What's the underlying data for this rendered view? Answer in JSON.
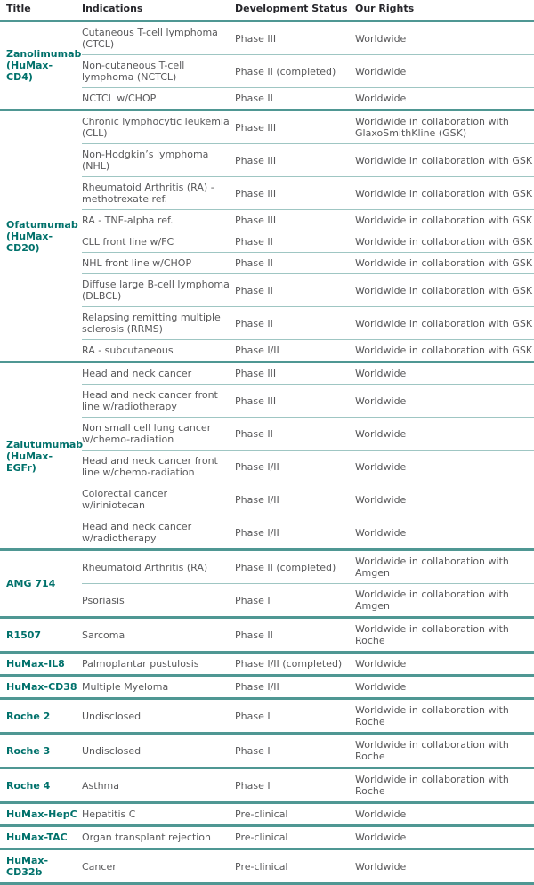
{
  "colors": {
    "accent": "#00716b",
    "border_thick": "#4f9793",
    "border_thin": "#9fc6c3",
    "header_text": "#26262b",
    "body_text": "#58585a",
    "background": "#ffffff"
  },
  "table": {
    "columns": [
      "Title",
      "Indications",
      "Development Status",
      "Our Rights"
    ],
    "groups": [
      {
        "title": "Zanolimumab (HuMax-CD4)",
        "rows": [
          {
            "indication": "Cutaneous T-cell lymphoma (CTCL)",
            "status": "Phase III",
            "rights": "Worldwide"
          },
          {
            "indication": "Non-cutaneous T-cell lymphoma (NCTCL)",
            "status": "Phase II (completed)",
            "rights": "Worldwide"
          },
          {
            "indication": "NCTCL w/CHOP",
            "status": "Phase II",
            "rights": "Worldwide"
          }
        ]
      },
      {
        "title": "Ofatumumab (HuMax-CD20)",
        "rows": [
          {
            "indication": "Chronic lymphocytic leukemia (CLL)",
            "status": "Phase III",
            "rights": "Worldwide in collaboration with GlaxoSmithKline (GSK)"
          },
          {
            "indication": "Non-Hodgkin’s lymphoma (NHL)",
            "status": "Phase III",
            "rights": "Worldwide in collaboration with GSK"
          },
          {
            "indication": "Rheumatoid Arthritis (RA) - methotrexate ref.",
            "status": "Phase III",
            "rights": "Worldwide in collaboration with GSK"
          },
          {
            "indication": "RA - TNF-alpha ref.",
            "status": "Phase III",
            "rights": "Worldwide in collaboration with GSK"
          },
          {
            "indication": "CLL front line w/FC",
            "status": "Phase II",
            "rights": "Worldwide in collaboration with GSK"
          },
          {
            "indication": "NHL front line w/CHOP",
            "status": "Phase II",
            "rights": "Worldwide in collaboration with GSK"
          },
          {
            "indication": "Diffuse large B-cell lymphoma (DLBCL)",
            "status": "Phase II",
            "rights": "Worldwide in collaboration with GSK"
          },
          {
            "indication": "Relapsing remitting multiple sclerosis (RRMS)",
            "status": "Phase II",
            "rights": "Worldwide in collaboration with GSK"
          },
          {
            "indication": "RA - subcutaneous",
            "status": "Phase I/II",
            "rights": "Worldwide in collaboration with GSK"
          }
        ]
      },
      {
        "title": "Zalutumumab (HuMax-EGFr)",
        "rows": [
          {
            "indication": "Head and neck cancer",
            "status": "Phase III",
            "rights": "Worldwide"
          },
          {
            "indication": "Head and neck cancer front line w/radiotherapy",
            "status": "Phase III",
            "rights": "Worldwide"
          },
          {
            "indication": "Non small cell lung cancer w/chemo-radiation",
            "status": "Phase II",
            "rights": "Worldwide"
          },
          {
            "indication": "Head and neck cancer front line w/chemo-radiation",
            "status": "Phase I/II",
            "rights": "Worldwide"
          },
          {
            "indication": "Colorectal cancer w/iriniotecan",
            "status": "Phase I/II",
            "rights": "Worldwide"
          },
          {
            "indication": "Head and neck cancer w/radiotherapy",
            "status": "Phase I/II",
            "rights": "Worldwide"
          }
        ]
      },
      {
        "title": "AMG 714",
        "rows": [
          {
            "indication": "Rheumatoid Arthritis (RA)",
            "status": "Phase II (completed)",
            "rights": "Worldwide in collaboration with Amgen"
          },
          {
            "indication": "Psoriasis",
            "status": "Phase I",
            "rights": "Worldwide in collaboration with Amgen"
          }
        ]
      },
      {
        "title": "R1507",
        "rows": [
          {
            "indication": "Sarcoma",
            "status": "Phase II",
            "rights": "Worldwide in collaboration with Roche"
          }
        ]
      },
      {
        "title": "HuMax-IL8",
        "rows": [
          {
            "indication": "Palmoplantar pustulosis",
            "status": "Phase I/II (completed)",
            "rights": "Worldwide"
          }
        ]
      },
      {
        "title": "HuMax-CD38",
        "rows": [
          {
            "indication": "Multiple Myeloma",
            "status": "Phase I/II",
            "rights": "Worldwide"
          }
        ]
      },
      {
        "title": "Roche 2",
        "rows": [
          {
            "indication": "Undisclosed",
            "status": "Phase I",
            "rights": "Worldwide in collaboration with Roche"
          }
        ]
      },
      {
        "title": "Roche 3",
        "rows": [
          {
            "indication": "Undisclosed",
            "status": "Phase I",
            "rights": "Worldwide in collaboration with Roche"
          }
        ]
      },
      {
        "title": "Roche 4",
        "rows": [
          {
            "indication": "Asthma",
            "status": "Phase I",
            "rights": "Worldwide in collaboration with Roche"
          }
        ]
      },
      {
        "title": "HuMax-HepC",
        "rows": [
          {
            "indication": "Hepatitis C",
            "status": "Pre-clinical",
            "rights": "Worldwide"
          }
        ]
      },
      {
        "title": "HuMax-TAC",
        "rows": [
          {
            "indication": "Organ transplant rejection",
            "status": "Pre-clinical",
            "rights": "Worldwide"
          }
        ]
      },
      {
        "title": "HuMax-CD32b",
        "rows": [
          {
            "indication": "Cancer",
            "status": "Pre-clinical",
            "rights": "Worldwide"
          }
        ]
      }
    ]
  }
}
